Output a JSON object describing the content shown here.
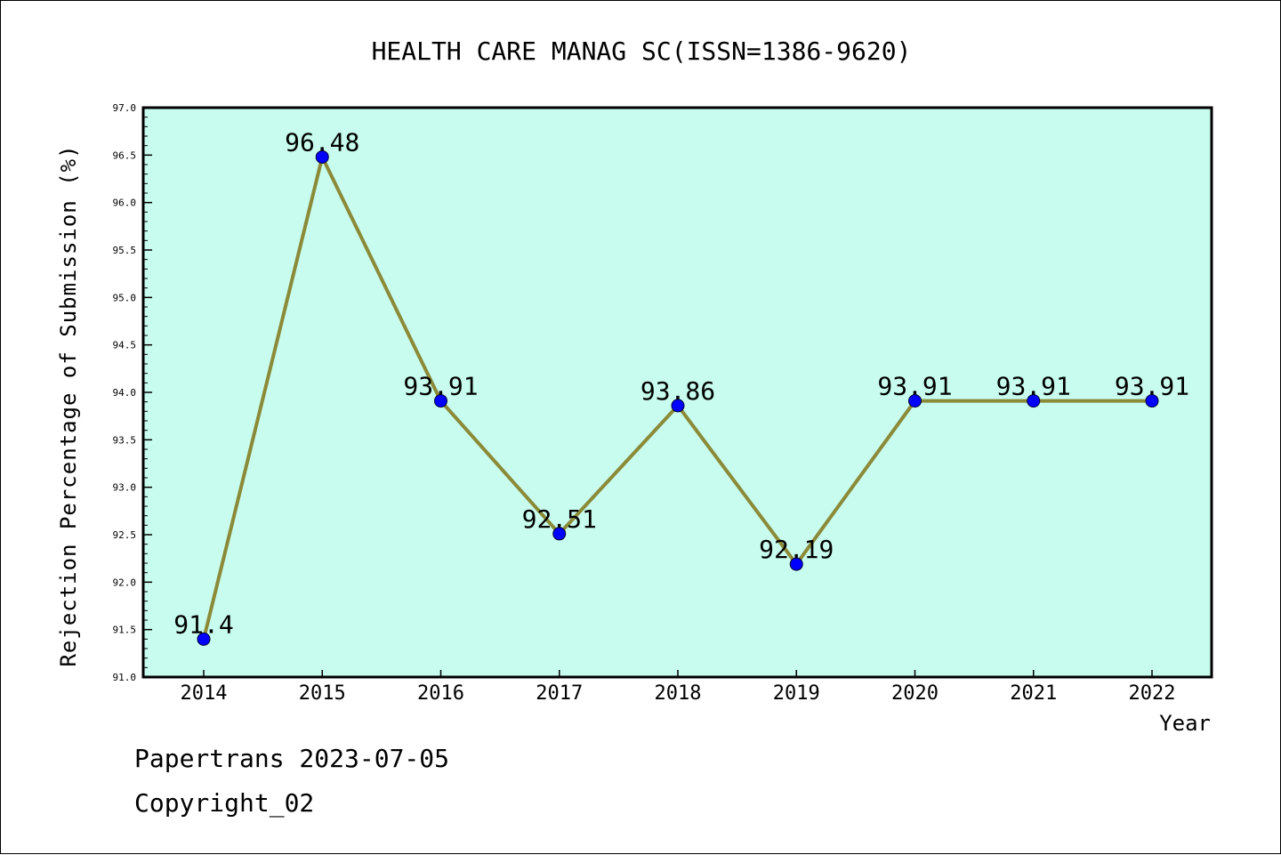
{
  "chart_data": {
    "type": "line",
    "title": "HEALTH CARE MANAG SC(ISSN=1386-9620)",
    "xlabel": "Year",
    "ylabel": "Rejection Percentage of Submission (%)",
    "categories": [
      "2014",
      "2015",
      "2016",
      "2017",
      "2018",
      "2019",
      "2020",
      "2021",
      "2022"
    ],
    "series": [
      {
        "values": [
          91.4,
          96.48,
          93.91,
          92.51,
          93.86,
          92.19,
          93.91,
          93.91,
          93.91
        ]
      }
    ],
    "data_labels": [
      "91.4",
      "96.48",
      "93.91",
      "92.51",
      "93.86",
      "92.19",
      "93.91",
      "93.91",
      "93.91"
    ],
    "ylim": [
      91.0,
      97.0
    ],
    "yticks": [
      "91.0",
      "91.5",
      "92.0",
      "92.5",
      "93.0",
      "93.5",
      "94.0",
      "94.5",
      "95.0",
      "95.5",
      "96.0",
      "96.5",
      "97.0"
    ],
    "grid": false,
    "legend": "none",
    "colors": {
      "plot_background": "#c8fcee",
      "line": "#8b8a38",
      "marker": "#0000ff",
      "axes": "#000000"
    }
  },
  "footer": {
    "line1": "Papertrans 2023-07-05",
    "line2": "Copyright_02"
  }
}
